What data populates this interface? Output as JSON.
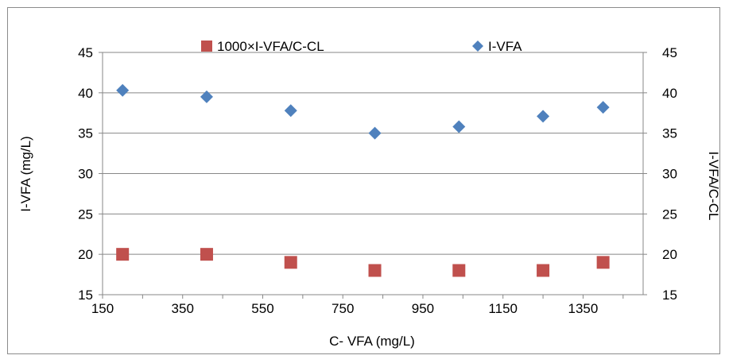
{
  "chart_data": {
    "type": "scatter",
    "title": "",
    "xlabel": "C- VFA (mg/L)",
    "ylabel": "I-VFA (mg/L)",
    "y2label": "I-VFA/C-CL",
    "xlim": [
      150,
      1500
    ],
    "ylim": [
      15,
      45
    ],
    "y2lim": [
      15,
      45
    ],
    "x_ticks": [
      "150",
      "350",
      "550",
      "750",
      "950",
      "1150",
      "1350"
    ],
    "y_ticks": [
      "15",
      "20",
      "25",
      "30",
      "35",
      "40",
      "45"
    ],
    "y2_ticks": [
      "15",
      "20",
      "25",
      "30",
      "35",
      "40",
      "45"
    ],
    "grid": "horizontal",
    "legend_position": "top",
    "series": [
      {
        "name": "1000×I-VFA/C-CL",
        "marker": "square",
        "color": "#c0504d",
        "x": [
          200,
          410,
          620,
          830,
          1040,
          1250,
          1400
        ],
        "y": [
          20,
          20,
          19,
          18,
          18,
          18,
          19
        ]
      },
      {
        "name": "I-VFA",
        "marker": "diamond",
        "color": "#4f81bd",
        "x": [
          200,
          410,
          620,
          830,
          1040,
          1250,
          1400
        ],
        "y": [
          40.3,
          39.5,
          37.8,
          35.0,
          35.8,
          37.1,
          38.2
        ]
      }
    ]
  }
}
